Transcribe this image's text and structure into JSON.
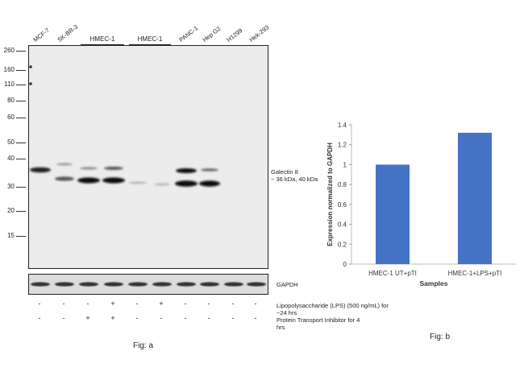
{
  "panel_a": {
    "lanes": [
      "MCF-7",
      "SK-BR-3",
      "",
      "",
      "",
      "",
      "PANC-1",
      "Hep G2",
      "H1299",
      "Hek-293"
    ],
    "groups": [
      "HMEC-1",
      "HMEC-1"
    ],
    "mw_markers": [
      "260",
      "160",
      "110",
      "80",
      "60",
      "50",
      "40",
      "30",
      "20",
      "15"
    ],
    "band_label_line1": "Galectin 8",
    "band_label_line2": "~ 36 kDa, 40 kDa",
    "loading_control_label": "GAPDH",
    "treatment_rows": [
      {
        "signs": [
          "-",
          "-",
          "-",
          "+",
          "-",
          "+",
          "-",
          "-",
          "-",
          "-"
        ],
        "label_line1": "Lipopolysaccharide (LPS) (500 ng/mL) for",
        "label_line2": "~24 hrs"
      },
      {
        "signs": [
          "-",
          "-",
          "+",
          "+",
          "-",
          "-",
          "-",
          "-",
          "-",
          "-"
        ],
        "label_line1": "Protein Transport Inhibitor for 4",
        "label_line2": "hrs"
      }
    ],
    "figure_label": "Fig: a"
  },
  "chart_data": {
    "type": "bar",
    "categories": [
      "HMEC-1 UT+pTI",
      "HMEC-1+LPS+pTI"
    ],
    "values": [
      1.0,
      1.32
    ],
    "title": "",
    "xlabel": "Samples",
    "ylabel": "Expression normalized to GAPDH",
    "ylim": [
      0,
      1.4
    ],
    "yticks": [
      "0",
      "0.2",
      "0.4",
      "0.6",
      "0.8",
      "1",
      "1.2",
      "1.4"
    ],
    "grid": false,
    "bar_color": "#4472c4",
    "figure_label": "Fig: b"
  }
}
